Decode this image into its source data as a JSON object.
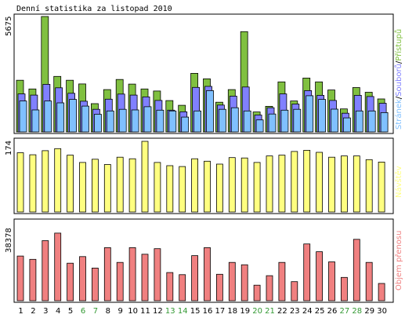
{
  "title": "Denní statistika za listopad 2010",
  "colors": {
    "pristupu": "#80c040",
    "souboru": "#8080ff",
    "stranek": "#80c0ff",
    "navstev": "#ffff80",
    "prenos": "#f08080",
    "weekend_label": "#339933",
    "weekday_label": "#000000"
  },
  "panels": [
    {
      "id": "hits",
      "ymax_label": "5675",
      "legend": [
        {
          "text": "Stránek",
          "color": "#80c0ff"
        },
        {
          "text": "/",
          "color": "#000000"
        },
        {
          "text": "Souborů",
          "color": "#8080ff"
        },
        {
          "text": "/",
          "color": "#000000"
        },
        {
          "text": "Přístupů",
          "color": "#80c040"
        }
      ]
    },
    {
      "id": "visits",
      "ymax_label": "174",
      "legend": [
        {
          "text": "Návštěv",
          "color": "#ffff80"
        }
      ]
    },
    {
      "id": "kb",
      "ymax_label": "38378",
      "legend": [
        {
          "text": "Objem přenosu",
          "color": "#f08080"
        }
      ]
    }
  ],
  "x_labels": [
    "1",
    "2",
    "3",
    "4",
    "5",
    "6",
    "7",
    "8",
    "9",
    "10",
    "11",
    "12",
    "13",
    "14",
    "15",
    "16",
    "17",
    "18",
    "19",
    "20",
    "21",
    "22",
    "23",
    "24",
    "25",
    "26",
    "27",
    "28",
    "29",
    "30"
  ],
  "weekend_days": [
    6,
    7,
    13,
    14,
    20,
    21,
    27,
    28
  ],
  "chart_data": [
    {
      "type": "bar",
      "title": "Denní statistika za listopad 2010",
      "categories": [
        "1",
        "2",
        "3",
        "4",
        "5",
        "6",
        "7",
        "8",
        "9",
        "10",
        "11",
        "12",
        "13",
        "14",
        "15",
        "16",
        "17",
        "18",
        "19",
        "20",
        "21",
        "22",
        "23",
        "24",
        "25",
        "26",
        "27",
        "28",
        "29",
        "30"
      ],
      "ylim": [
        0,
        5675
      ],
      "series": [
        {
          "name": "Přístupů",
          "values": [
            2540,
            2110,
            5675,
            2730,
            2540,
            2360,
            1390,
            2080,
            2580,
            2350,
            2110,
            2010,
            1540,
            1310,
            2880,
            2610,
            1460,
            2080,
            4930,
            980,
            1260,
            2460,
            1520,
            2650,
            2460,
            2060,
            1130,
            2180,
            1950,
            1620
          ]
        },
        {
          "name": "Souborů",
          "values": [
            1870,
            1810,
            2340,
            2170,
            1900,
            1510,
            1110,
            1610,
            1860,
            1810,
            1720,
            1550,
            1070,
            990,
            2190,
            2240,
            1320,
            1760,
            2210,
            830,
            1190,
            1870,
            1370,
            2030,
            1800,
            1550,
            920,
            1800,
            1740,
            1410
          ]
        },
        {
          "name": "Stránek",
          "values": [
            1520,
            1080,
            1520,
            1430,
            1600,
            1270,
            870,
            1030,
            1110,
            1080,
            1240,
            1070,
            1030,
            730,
            1030,
            2030,
            1110,
            1190,
            1030,
            590,
            880,
            1070,
            1110,
            1780,
            1600,
            1120,
            690,
            1030,
            1030,
            950
          ]
        }
      ]
    },
    {
      "type": "bar",
      "categories": [
        "1",
        "2",
        "3",
        "4",
        "5",
        "6",
        "7",
        "8",
        "9",
        "10",
        "11",
        "12",
        "13",
        "14",
        "15",
        "16",
        "17",
        "18",
        "19",
        "20",
        "21",
        "22",
        "23",
        "24",
        "25",
        "26",
        "27",
        "28",
        "29",
        "30"
      ],
      "ylim": [
        0,
        174
      ],
      "series": [
        {
          "name": "Návštěv",
          "values": [
            146,
            141,
            151,
            156,
            140,
            122,
            130,
            117,
            135,
            131,
            174,
            122,
            114,
            112,
            131,
            125,
            118,
            134,
            133,
            122,
            138,
            140,
            149,
            152,
            147,
            135,
            138,
            138,
            129,
            123
          ]
        }
      ]
    },
    {
      "type": "bar",
      "categories": [
        "1",
        "2",
        "3",
        "4",
        "5",
        "6",
        "7",
        "8",
        "9",
        "10",
        "11",
        "12",
        "13",
        "14",
        "15",
        "16",
        "17",
        "18",
        "19",
        "20",
        "21",
        "22",
        "23",
        "24",
        "25",
        "26",
        "27",
        "28",
        "29",
        "30"
      ],
      "ylim": [
        0,
        38378
      ],
      "series": [
        {
          "name": "Objem přenosu",
          "values": [
            23000,
            21300,
            30900,
            34800,
            19300,
            22700,
            16800,
            27300,
            19700,
            27300,
            23900,
            26800,
            14500,
            13400,
            23200,
            27300,
            13600,
            19700,
            18500,
            8000,
            12900,
            19700,
            9800,
            29200,
            25200,
            20000,
            12000,
            31600,
            19700,
            8900
          ]
        }
      ]
    }
  ]
}
